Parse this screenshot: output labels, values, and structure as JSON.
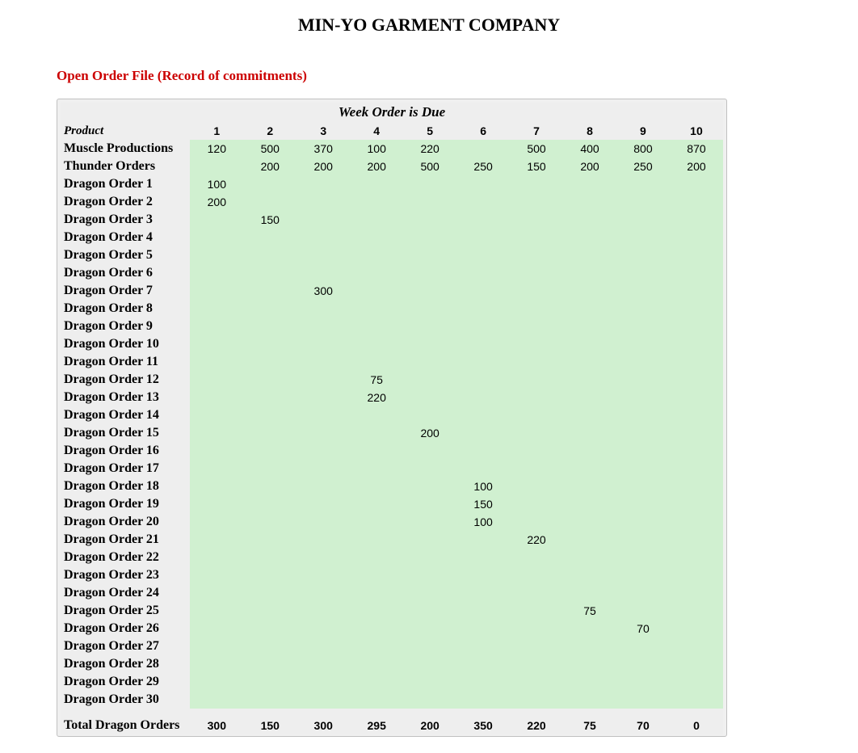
{
  "title": "MIN-YO GARMENT COMPANY",
  "subtitle": "Open Order File (Record of commitments)",
  "caption": "Week Order is Due",
  "colors": {
    "title_color": "#000000",
    "subtitle_color": "#cc0000",
    "data_cell_bg": "#d0f0d0",
    "header_bg": "#eeeeee",
    "border_color": "#c0c0c0",
    "page_bg": "#ffffff"
  },
  "typography": {
    "title_fontsize": 22,
    "subtitle_fontsize": 17,
    "caption_fontsize": 17,
    "label_fontsize": 16,
    "data_fontsize": 14
  },
  "product_header": "Product",
  "week_headers": [
    "1",
    "2",
    "3",
    "4",
    "5",
    "6",
    "7",
    "8",
    "9",
    "10"
  ],
  "rows": [
    {
      "label": "Muscle Productions",
      "vals": [
        "120",
        "500",
        "370",
        "100",
        "220",
        "",
        "500",
        "400",
        "800",
        "870"
      ]
    },
    {
      "label": "Thunder Orders",
      "vals": [
        "",
        "200",
        "200",
        "200",
        "500",
        "250",
        "150",
        "200",
        "250",
        "200"
      ]
    },
    {
      "label": "Dragon Order 1",
      "vals": [
        "100",
        "",
        "",
        "",
        "",
        "",
        "",
        "",
        "",
        ""
      ]
    },
    {
      "label": "Dragon Order 2",
      "vals": [
        "200",
        "",
        "",
        "",
        "",
        "",
        "",
        "",
        "",
        ""
      ]
    },
    {
      "label": "Dragon Order 3",
      "vals": [
        "",
        "150",
        "",
        "",
        "",
        "",
        "",
        "",
        "",
        ""
      ]
    },
    {
      "label": "Dragon Order 4",
      "vals": [
        "",
        "",
        "",
        "",
        "",
        "",
        "",
        "",
        "",
        ""
      ]
    },
    {
      "label": "Dragon Order 5",
      "vals": [
        "",
        "",
        "",
        "",
        "",
        "",
        "",
        "",
        "",
        ""
      ]
    },
    {
      "label": "Dragon Order 6",
      "vals": [
        "",
        "",
        "",
        "",
        "",
        "",
        "",
        "",
        "",
        ""
      ]
    },
    {
      "label": "Dragon Order 7",
      "vals": [
        "",
        "",
        "300",
        "",
        "",
        "",
        "",
        "",
        "",
        ""
      ]
    },
    {
      "label": "Dragon Order 8",
      "vals": [
        "",
        "",
        "",
        "",
        "",
        "",
        "",
        "",
        "",
        ""
      ]
    },
    {
      "label": "Dragon Order 9",
      "vals": [
        "",
        "",
        "",
        "",
        "",
        "",
        "",
        "",
        "",
        ""
      ]
    },
    {
      "label": "Dragon Order 10",
      "vals": [
        "",
        "",
        "",
        "",
        "",
        "",
        "",
        "",
        "",
        ""
      ]
    },
    {
      "label": "Dragon Order 11",
      "vals": [
        "",
        "",
        "",
        "",
        "",
        "",
        "",
        "",
        "",
        ""
      ]
    },
    {
      "label": "Dragon Order 12",
      "vals": [
        "",
        "",
        "",
        "75",
        "",
        "",
        "",
        "",
        "",
        ""
      ]
    },
    {
      "label": "Dragon Order 13",
      "vals": [
        "",
        "",
        "",
        "220",
        "",
        "",
        "",
        "",
        "",
        ""
      ]
    },
    {
      "label": "Dragon Order 14",
      "vals": [
        "",
        "",
        "",
        "",
        "",
        "",
        "",
        "",
        "",
        ""
      ]
    },
    {
      "label": "Dragon Order 15",
      "vals": [
        "",
        "",
        "",
        "",
        "200",
        "",
        "",
        "",
        "",
        ""
      ]
    },
    {
      "label": "Dragon Order 16",
      "vals": [
        "",
        "",
        "",
        "",
        "",
        "",
        "",
        "",
        "",
        ""
      ]
    },
    {
      "label": "Dragon Order 17",
      "vals": [
        "",
        "",
        "",
        "",
        "",
        "",
        "",
        "",
        "",
        ""
      ]
    },
    {
      "label": "Dragon Order 18",
      "vals": [
        "",
        "",
        "",
        "",
        "",
        "100",
        "",
        "",
        "",
        ""
      ]
    },
    {
      "label": "Dragon Order 19",
      "vals": [
        "",
        "",
        "",
        "",
        "",
        "150",
        "",
        "",
        "",
        ""
      ]
    },
    {
      "label": "Dragon Order 20",
      "vals": [
        "",
        "",
        "",
        "",
        "",
        "100",
        "",
        "",
        "",
        ""
      ]
    },
    {
      "label": "Dragon Order 21",
      "vals": [
        "",
        "",
        "",
        "",
        "",
        "",
        "220",
        "",
        "",
        ""
      ]
    },
    {
      "label": "Dragon Order 22",
      "vals": [
        "",
        "",
        "",
        "",
        "",
        "",
        "",
        "",
        "",
        ""
      ]
    },
    {
      "label": "Dragon Order 23",
      "vals": [
        "",
        "",
        "",
        "",
        "",
        "",
        "",
        "",
        "",
        ""
      ]
    },
    {
      "label": "Dragon Order 24",
      "vals": [
        "",
        "",
        "",
        "",
        "",
        "",
        "",
        "",
        "",
        ""
      ]
    },
    {
      "label": "Dragon Order 25",
      "vals": [
        "",
        "",
        "",
        "",
        "",
        "",
        "",
        "75",
        "",
        ""
      ]
    },
    {
      "label": "Dragon Order 26",
      "vals": [
        "",
        "",
        "",
        "",
        "",
        "",
        "",
        "",
        "70",
        ""
      ]
    },
    {
      "label": "Dragon Order 27",
      "vals": [
        "",
        "",
        "",
        "",
        "",
        "",
        "",
        "",
        "",
        ""
      ]
    },
    {
      "label": "Dragon Order 28",
      "vals": [
        "",
        "",
        "",
        "",
        "",
        "",
        "",
        "",
        "",
        ""
      ]
    },
    {
      "label": "Dragon Order 29",
      "vals": [
        "",
        "",
        "",
        "",
        "",
        "",
        "",
        "",
        "",
        ""
      ]
    },
    {
      "label": "Dragon Order 30",
      "vals": [
        "",
        "",
        "",
        "",
        "",
        "",
        "",
        "",
        "",
        ""
      ]
    }
  ],
  "total_row": {
    "label": "Total Dragon Orders",
    "vals": [
      "300",
      "150",
      "300",
      "295",
      "200",
      "350",
      "220",
      "75",
      "70",
      "0"
    ]
  }
}
